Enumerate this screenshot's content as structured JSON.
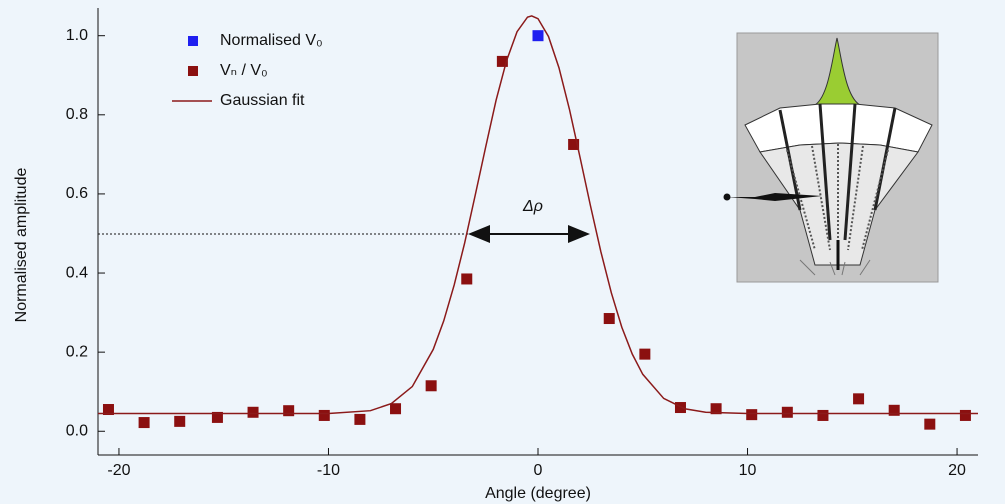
{
  "chart_data": {
    "type": "scatter",
    "xlabel": "Angle (degree)",
    "ylabel": "Normalised amplitude",
    "annotation": "Δρ",
    "xlim": [
      -21,
      21
    ],
    "ylim": [
      -0.06,
      1.07
    ],
    "xticks": [
      -20,
      -10,
      0,
      10,
      20
    ],
    "yticks": [
      {
        "value": 0,
        "label": "0.0"
      },
      0.2,
      0.4,
      0.6,
      0.8,
      {
        "value": 1,
        "label": "1.0"
      }
    ],
    "series": [
      {
        "name": "Normalised V₀",
        "type": "scatter",
        "color": "#1f1ff0",
        "x": [
          0
        ],
        "values": [
          1.0
        ]
      },
      {
        "name": "Vₙ / V₀",
        "type": "scatter",
        "color": "#8b1010",
        "x": [
          -20.5,
          -18.8,
          -17.1,
          -15.3,
          -13.6,
          -11.9,
          -10.2,
          -8.5,
          -6.8,
          -5.1,
          -3.4,
          -1.7,
          1.7,
          3.4,
          5.1,
          6.8,
          8.5,
          10.2,
          11.9,
          13.6,
          15.3,
          17.0,
          18.7,
          20.4
        ],
        "values": [
          0.055,
          0.022,
          0.025,
          0.035,
          0.048,
          0.052,
          0.04,
          0.03,
          0.057,
          0.115,
          0.385,
          0.935,
          0.725,
          0.285,
          0.195,
          0.06,
          0.057,
          0.042,
          0.048,
          0.04,
          0.082,
          0.053,
          0.018,
          0.04
        ]
      },
      {
        "name": "Gaussian fit",
        "type": "line",
        "color": "#8b1a1a",
        "x": [
          -21,
          -15,
          -10,
          -8,
          -7,
          -6,
          -5,
          -4.5,
          -4,
          -3.5,
          -3,
          -2.5,
          -2,
          -1.5,
          -1,
          -0.5,
          -0.3,
          0,
          0.5,
          1,
          1.5,
          2,
          2.5,
          3,
          3.5,
          4,
          4.5,
          5,
          6,
          7,
          8,
          10,
          15,
          21
        ],
        "values": [
          0.045,
          0.045,
          0.045,
          0.052,
          0.07,
          0.113,
          0.207,
          0.279,
          0.37,
          0.476,
          0.596,
          0.718,
          0.837,
          0.937,
          1.01,
          1.047,
          1.05,
          1.043,
          0.998,
          0.919,
          0.814,
          0.694,
          0.571,
          0.454,
          0.35,
          0.263,
          0.195,
          0.144,
          0.083,
          0.057,
          0.048,
          0.045,
          0.045,
          0.045
        ]
      }
    ]
  }
}
